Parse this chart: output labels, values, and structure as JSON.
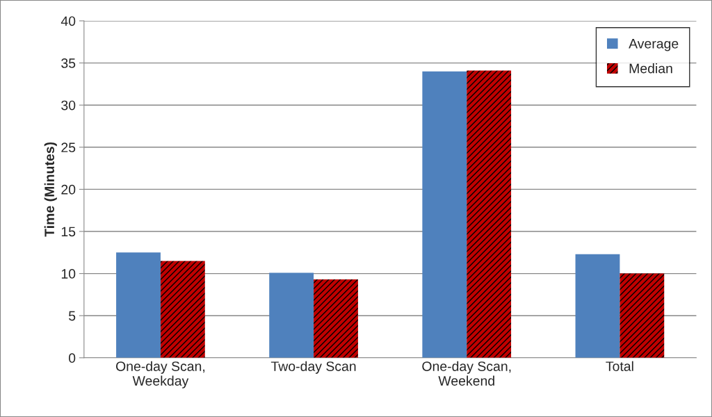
{
  "chart_data": {
    "type": "bar",
    "ylabel": "Time (Minutes)",
    "categories": [
      "One-day Scan,\nWeekday",
      "Two-day Scan",
      "One-day Scan,\nWeekend",
      "Total"
    ],
    "series": [
      {
        "name": "Average",
        "color": "#4f81bd",
        "values": [
          12.5,
          10.1,
          34.0,
          12.3
        ]
      },
      {
        "name": "Median",
        "color": "#c00000",
        "values": [
          11.5,
          9.3,
          34.1,
          10.0
        ]
      }
    ],
    "ylim": [
      0,
      40
    ],
    "yticks": [
      0,
      5,
      10,
      15,
      20,
      25,
      30,
      35,
      40
    ],
    "grid": "y",
    "legend": "top right"
  }
}
